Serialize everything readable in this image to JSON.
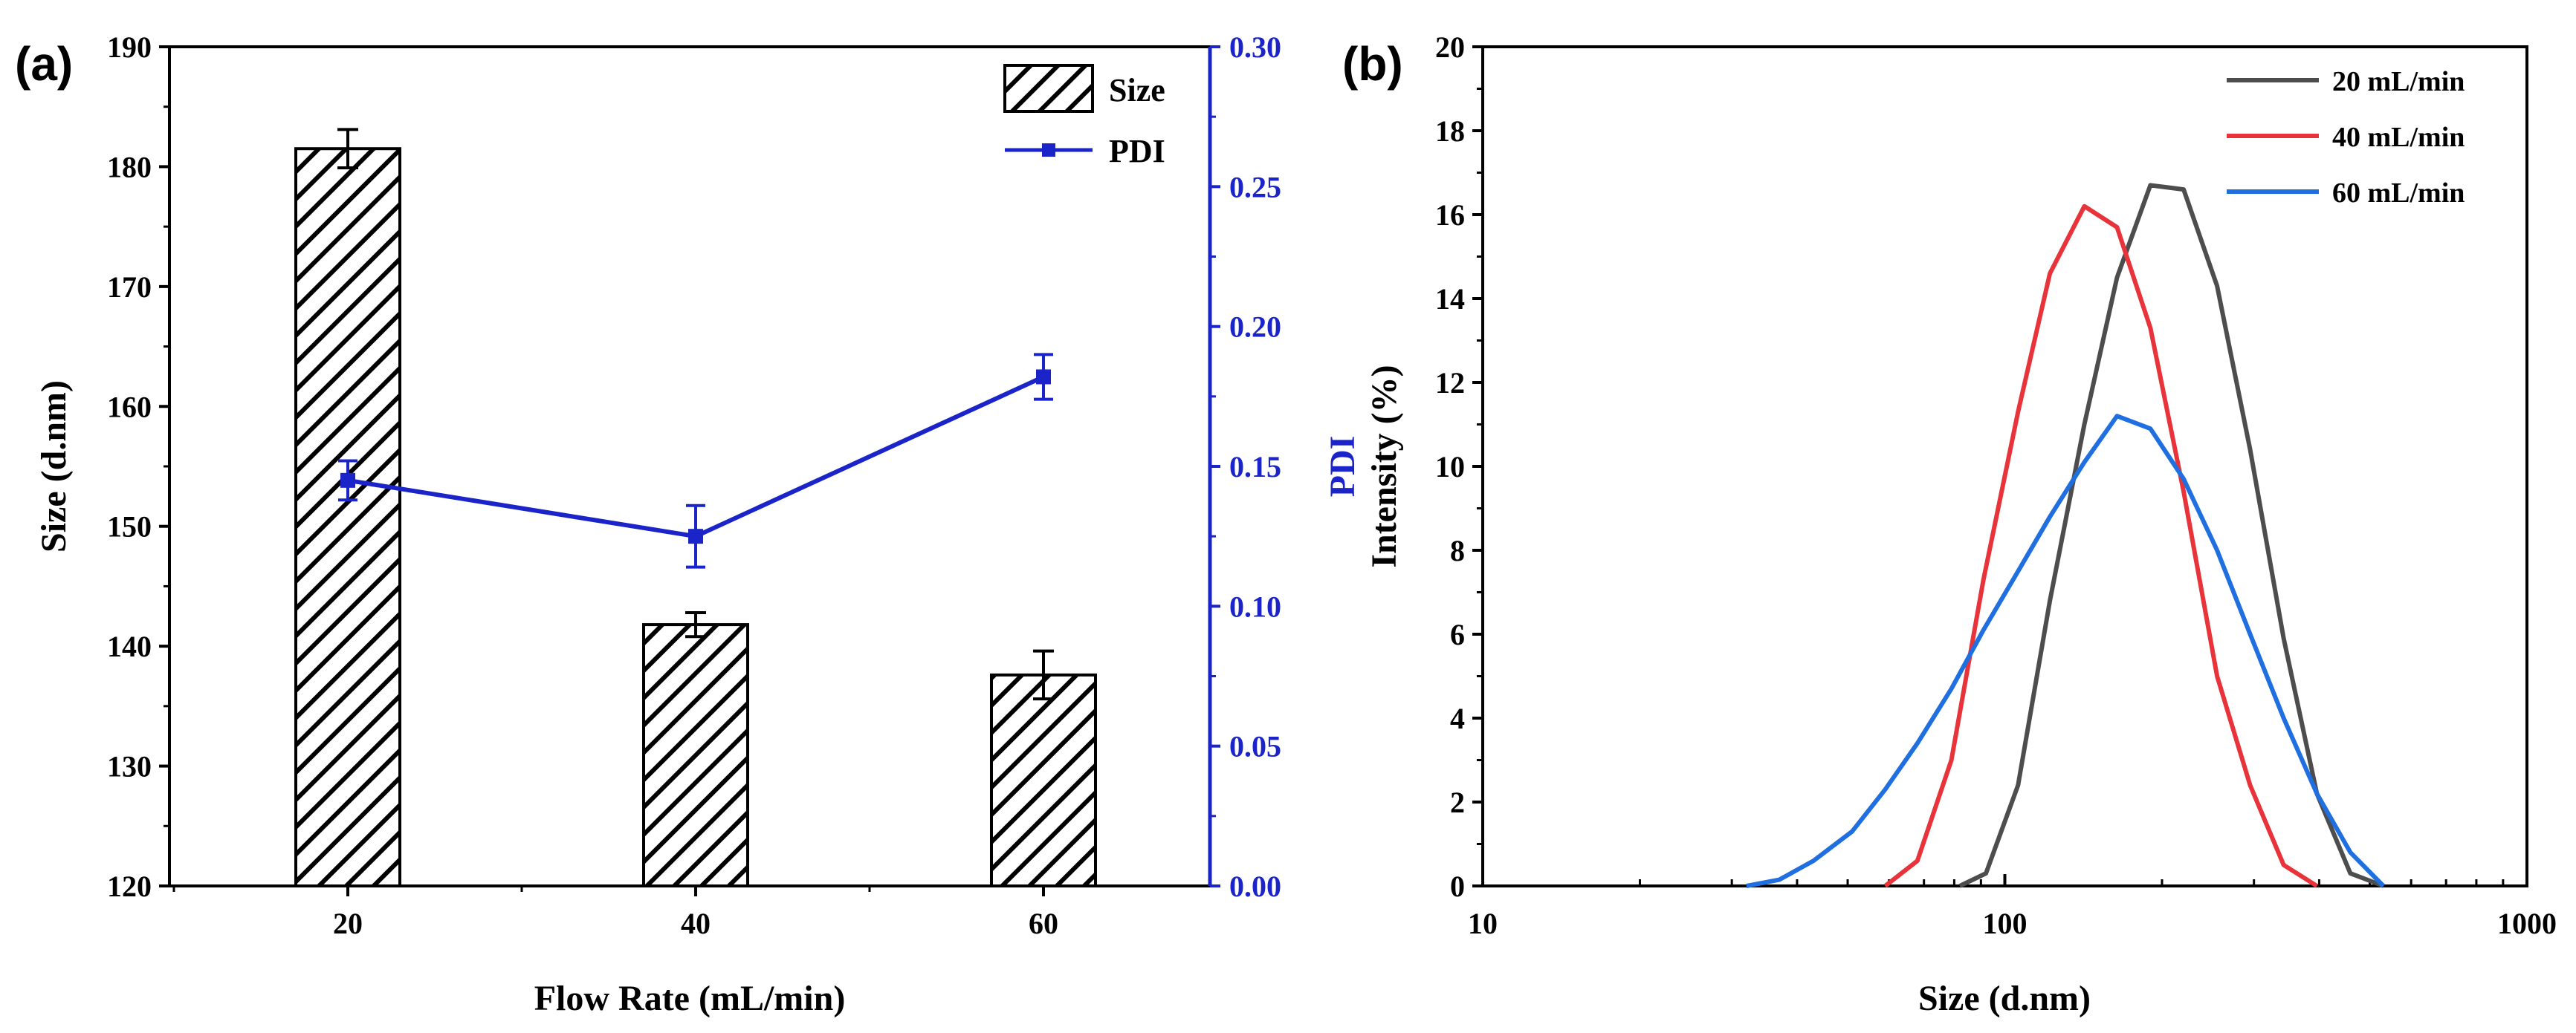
{
  "chart_data": [
    {
      "panel_label": "(a)",
      "type": "bar",
      "xlabel": "Flow Rate (mL/min)",
      "ylabel": "Size (d.nm)",
      "y2label": "PDI",
      "categories": [
        "20",
        "40",
        "60"
      ],
      "ylim": [
        120,
        190
      ],
      "yticks": [
        120,
        130,
        140,
        150,
        160,
        170,
        180,
        190
      ],
      "y2lim": [
        0,
        0.3
      ],
      "y2ticks": [
        "0.00",
        "0.05",
        "0.10",
        "0.15",
        "0.20",
        "0.25",
        "0.30"
      ],
      "grid": false,
      "legend_position": "top-right",
      "series": [
        {
          "name": "Size",
          "type": "bar",
          "pattern": "hatched",
          "axis": "left",
          "values": [
            181.5,
            141.8,
            137.6
          ],
          "errors": [
            1.6,
            1.0,
            2.0
          ]
        },
        {
          "name": "PDI",
          "type": "line",
          "axis": "right",
          "color": "#1a24c8",
          "values": [
            0.145,
            0.125,
            0.182
          ],
          "errors": [
            0.007,
            0.011,
            0.008
          ]
        }
      ]
    },
    {
      "panel_label": "(b)",
      "type": "line",
      "xlabel": "Size (d.nm)",
      "ylabel": "Intensity (%)",
      "xscale": "log",
      "xlim": [
        10,
        1000
      ],
      "xticks": [
        "10",
        "100",
        "1000"
      ],
      "ylim": [
        0,
        20
      ],
      "yticks": [
        0,
        2,
        4,
        6,
        8,
        10,
        12,
        14,
        16,
        18,
        20
      ],
      "grid": false,
      "legend_position": "top-right",
      "series": [
        {
          "name": "20 mL/min",
          "color": "#4d4d4d",
          "x": [
            82,
            92,
            106,
            122,
            142,
            164,
            190,
            220,
            255,
            295,
            342,
            396,
            459,
            531
          ],
          "y": [
            0,
            0.3,
            2.4,
            6.8,
            11.0,
            14.5,
            16.7,
            16.6,
            14.3,
            10.4,
            5.9,
            2.2,
            0.3,
            0
          ]
        },
        {
          "name": "40 mL/min",
          "color": "#e8333b",
          "x": [
            59,
            68,
            79,
            91,
            106,
            122,
            142,
            164,
            190,
            220,
            255,
            295,
            342,
            396
          ],
          "y": [
            0,
            0.6,
            3.0,
            7.3,
            11.3,
            14.6,
            16.2,
            15.7,
            13.3,
            9.4,
            5.0,
            2.4,
            0.5,
            0
          ]
        },
        {
          "name": "60 mL/min",
          "color": "#1f6fe0",
          "x": [
            32,
            37,
            43,
            51,
            59,
            68,
            79,
            91,
            106,
            122,
            142,
            164,
            190,
            220,
            255,
            295,
            342,
            396,
            459,
            531
          ],
          "y": [
            0,
            0.15,
            0.6,
            1.3,
            2.3,
            3.4,
            4.7,
            6.1,
            7.5,
            8.8,
            10.1,
            11.2,
            10.9,
            9.7,
            8.0,
            6.0,
            4.0,
            2.2,
            0.8,
            0
          ]
        }
      ]
    }
  ]
}
